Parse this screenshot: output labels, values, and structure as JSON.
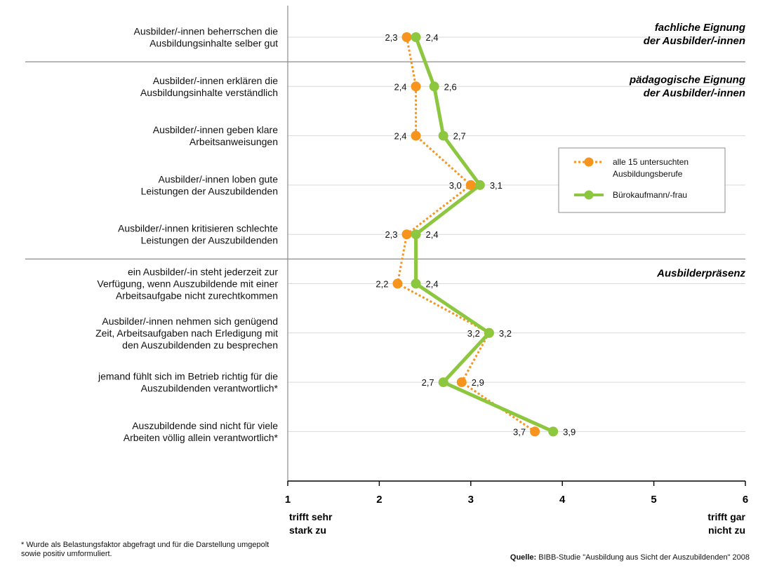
{
  "chart_data": {
    "type": "line",
    "orientation": "horizontal",
    "xlim": [
      1,
      6
    ],
    "x_ticks": [
      1,
      2,
      3,
      4,
      5,
      6
    ],
    "x_tick_labels": [
      "1",
      "2",
      "3",
      "4",
      "5",
      "6"
    ],
    "scale_left_label": [
      "trifft sehr",
      "stark zu"
    ],
    "scale_right_label": [
      "trifft gar",
      "nicht zu"
    ],
    "categories": [
      [
        "Ausbilder/-innen beherrschen die",
        "Ausbildungsinhalte selber gut"
      ],
      [
        "Ausbilder/-innen erklären die",
        "Ausbildungsinhalte verständlich"
      ],
      [
        "Ausbilder/-innen geben klare",
        "Arbeitsanweisungen"
      ],
      [
        "Ausbilder/-innen loben gute",
        "Leistungen der Auszubildenden"
      ],
      [
        "Ausbilder/-innen kritisieren schlechte",
        "Leistungen der Auszubildenden"
      ],
      [
        "ein Ausbilder/-in steht jederzeit zur",
        "Verfügung, wenn Auszubildende mit einer",
        "Arbeitsaufgabe nicht zurechtkommen"
      ],
      [
        "Ausbilder/-innen nehmen sich genügend",
        "Zeit, Arbeitsaufgaben nach Erledigung mit",
        "den Auszubildenden zu besprechen"
      ],
      [
        "jemand fühlt sich im Betrieb richtig für die",
        "Auszubildenden verantwortlich*"
      ],
      [
        "Auszubildende sind nicht für viele",
        "Arbeiten völlig allein verantwortlich*"
      ]
    ],
    "series": [
      {
        "name": "alle 15 untersuchten Ausbildungsberufe",
        "legend_lines": [
          "alle 15 untersuchten",
          "Ausbildungsberufe"
        ],
        "values": [
          2.3,
          2.4,
          2.4,
          3.0,
          2.3,
          2.2,
          3.2,
          2.9,
          3.7
        ],
        "labels": [
          "2,3",
          "2,4",
          "2,4",
          "3,0",
          "2,3",
          "2,2",
          "3,2",
          "2,9",
          "3,7"
        ],
        "color": "#F7941D",
        "style": "dotted"
      },
      {
        "name": "Bürokaufmann/-frau",
        "legend_lines": [
          "Bürokaufmann/-frau"
        ],
        "values": [
          2.4,
          2.6,
          2.7,
          3.1,
          2.4,
          2.4,
          3.2,
          2.7,
          3.9
        ],
        "labels": [
          "2,4",
          "2,6",
          "2,7",
          "3,1",
          "2,4",
          "2,4",
          "3,2",
          "2,7",
          "3,9"
        ],
        "color": "#8DC63F",
        "style": "solid"
      }
    ],
    "sections": [
      {
        "lines": [
          "fachliche Eignung",
          "der Ausbilder/-innen"
        ],
        "start": 0
      },
      {
        "lines": [
          "pädagogische Eignung",
          "der Ausbilder/-innen"
        ],
        "start": 1
      },
      {
        "lines": [
          "Ausbilderpräsenz"
        ],
        "start": 5
      }
    ],
    "grid": true,
    "legend_position": "right"
  },
  "footnote": "* Wurde als Belastungsfaktor abgefragt und für die Darstellung umgepolt sowie positiv umformuliert.",
  "source": {
    "label": "Quelle:",
    "text": "BIBB-Studie \"Ausbildung aus Sicht der Auszubildenden\" 2008"
  }
}
